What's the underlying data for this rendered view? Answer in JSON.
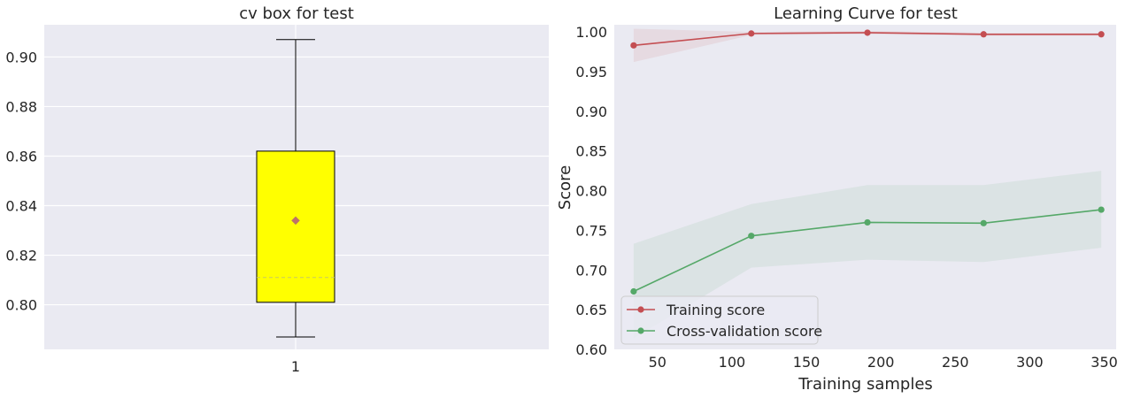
{
  "chart_data": [
    {
      "type": "box",
      "title": "cv box for test",
      "xlabel": "",
      "ylabel": "",
      "categories": [
        "1"
      ],
      "ylim": [
        0.782,
        0.913
      ],
      "yticks": [
        "0.80",
        "0.82",
        "0.84",
        "0.86",
        "0.88",
        "0.90"
      ],
      "box": {
        "whisker_low": 0.787,
        "q1": 0.801,
        "median": 0.811,
        "q3": 0.862,
        "whisker_high": 0.907,
        "mean": 0.834
      },
      "colors": {
        "box_fill": "#ffff00",
        "mean_marker": "#c0706a",
        "median_line": "#c8c860"
      },
      "grid": true
    },
    {
      "type": "line",
      "title": "Learning Curve for test",
      "xlabel": "Training samples",
      "ylabel": "Score",
      "xlim": [
        21,
        358
      ],
      "ylim": [
        0.6,
        1.009
      ],
      "xticks": [
        "50",
        "100",
        "150",
        "200",
        "250",
        "300",
        "350"
      ],
      "yticks": [
        "0.60",
        "0.65",
        "0.70",
        "0.75",
        "0.80",
        "0.85",
        "0.90",
        "0.95",
        "1.00"
      ],
      "x": [
        34,
        113,
        191,
        269,
        348
      ],
      "series": [
        {
          "name": "Training score",
          "color": "#c44e52",
          "values": [
            0.983,
            0.998,
            0.999,
            0.997,
            0.997
          ],
          "band_low": [
            0.962,
            0.996,
            0.997,
            0.995,
            0.995
          ],
          "band_high": [
            1.004,
            1.0,
            1.001,
            0.999,
            0.999
          ]
        },
        {
          "name": "Cross-validation score",
          "color": "#55a868",
          "values": [
            0.673,
            0.743,
            0.76,
            0.759,
            0.776
          ],
          "band_low": [
            0.614,
            0.703,
            0.713,
            0.71,
            0.728
          ],
          "band_high": [
            0.733,
            0.783,
            0.807,
            0.807,
            0.825
          ]
        }
      ],
      "legend_position": "lower-left",
      "grid": true
    }
  ]
}
